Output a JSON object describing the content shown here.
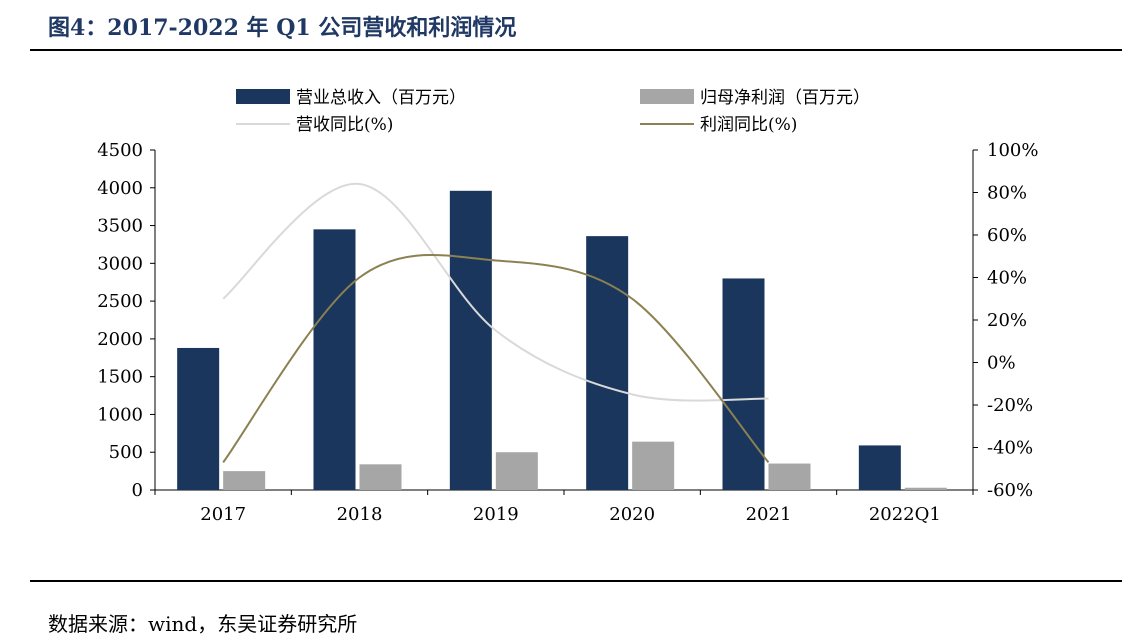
{
  "title": "图4：2017-2022 年 Q1 公司营收和利润情况",
  "source": "数据来源：wind，东吴证券研究所",
  "chart_data": {
    "type": "bar",
    "categories": [
      "2017",
      "2018",
      "2019",
      "2020",
      "2021",
      "2022Q1"
    ],
    "series": [
      {
        "name": "营业总收入（百万元）",
        "kind": "bar",
        "axis": "left",
        "color": "#1b365d",
        "values": [
          1880,
          3450,
          3960,
          3360,
          2800,
          590
        ]
      },
      {
        "name": "归母净利润（百万元）",
        "kind": "bar",
        "axis": "left",
        "color": "#a6a6a6",
        "values": [
          250,
          340,
          500,
          640,
          350,
          30
        ]
      },
      {
        "name": "营收同比(%)",
        "kind": "line",
        "axis": "right",
        "color": "#d9d9d9",
        "values": [
          30,
          84,
          15,
          -15,
          -17,
          null
        ]
      },
      {
        "name": "利润同比(%)",
        "kind": "line",
        "axis": "right",
        "color": "#8b8152",
        "values": [
          -47,
          40,
          48,
          30,
          -47,
          null
        ]
      }
    ],
    "left_axis": {
      "min": 0,
      "max": 4500,
      "step": 500,
      "ticks": [
        "0",
        "500",
        "1000",
        "1500",
        "2000",
        "2500",
        "3000",
        "3500",
        "4000",
        "4500"
      ]
    },
    "right_axis": {
      "min": -60,
      "max": 100,
      "step": 20,
      "ticks": [
        "-60%",
        "-40%",
        "-20%",
        "0%",
        "20%",
        "40%",
        "60%",
        "80%",
        "100%"
      ]
    },
    "legend_position": "top",
    "grid": false
  }
}
